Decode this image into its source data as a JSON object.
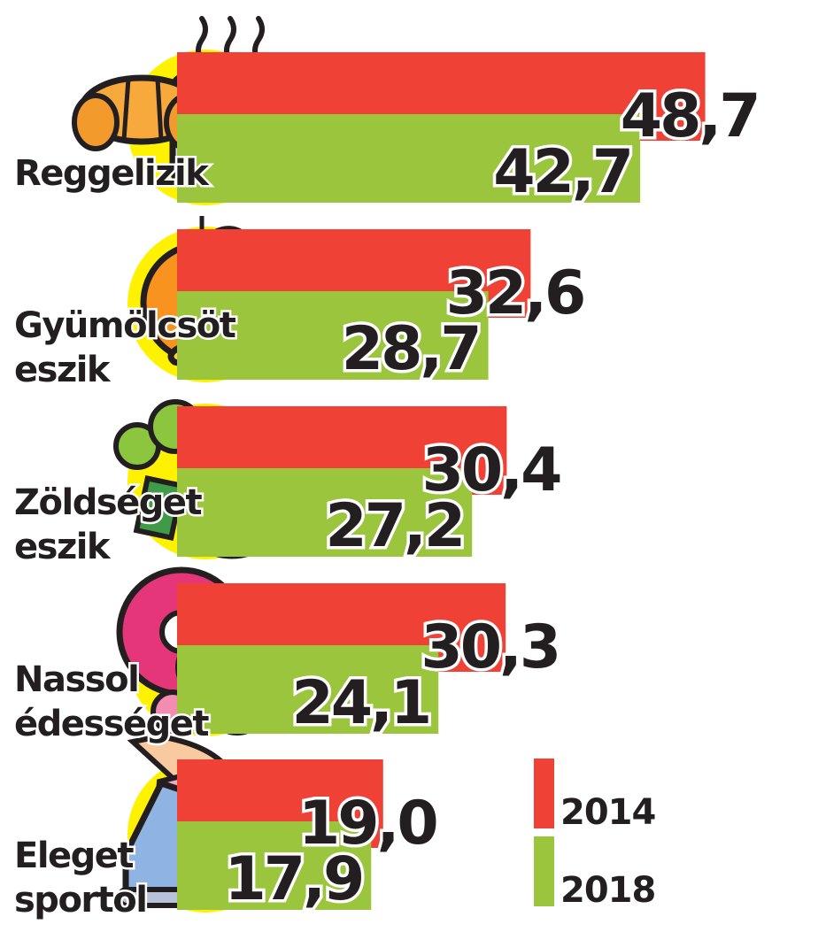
{
  "chart_data": {
    "type": "bar",
    "orientation": "horizontal",
    "categories": [
      [
        "Reggelizik"
      ],
      [
        "Gyümölcsöt",
        "eszik"
      ],
      [
        "Zöldséget",
        "eszik"
      ],
      [
        "Nassol",
        "édességet"
      ],
      [
        "Eleget",
        "sportol"
      ]
    ],
    "series": [
      {
        "name": "2014",
        "color": "#ef4136",
        "values": [
          48.7,
          32.6,
          30.4,
          30.3,
          19.0
        ],
        "labels": [
          "48,7",
          "32,6",
          "30,4",
          "30,3",
          "19,0"
        ]
      },
      {
        "name": "2018",
        "color": "#9bc53d",
        "values": [
          42.7,
          28.7,
          27.2,
          24.1,
          17.9
        ],
        "labels": [
          "42,7",
          "28,7",
          "27,2",
          "24,1",
          "17,9"
        ]
      }
    ],
    "icons": [
      "coffee-croissant-icon",
      "orange-banana-icon",
      "broccoli-tomato-icon",
      "donut-candy-icon",
      "sneaker-icon"
    ],
    "legend_position": "bottom-right",
    "accent_circle_color": "#fff200"
  }
}
